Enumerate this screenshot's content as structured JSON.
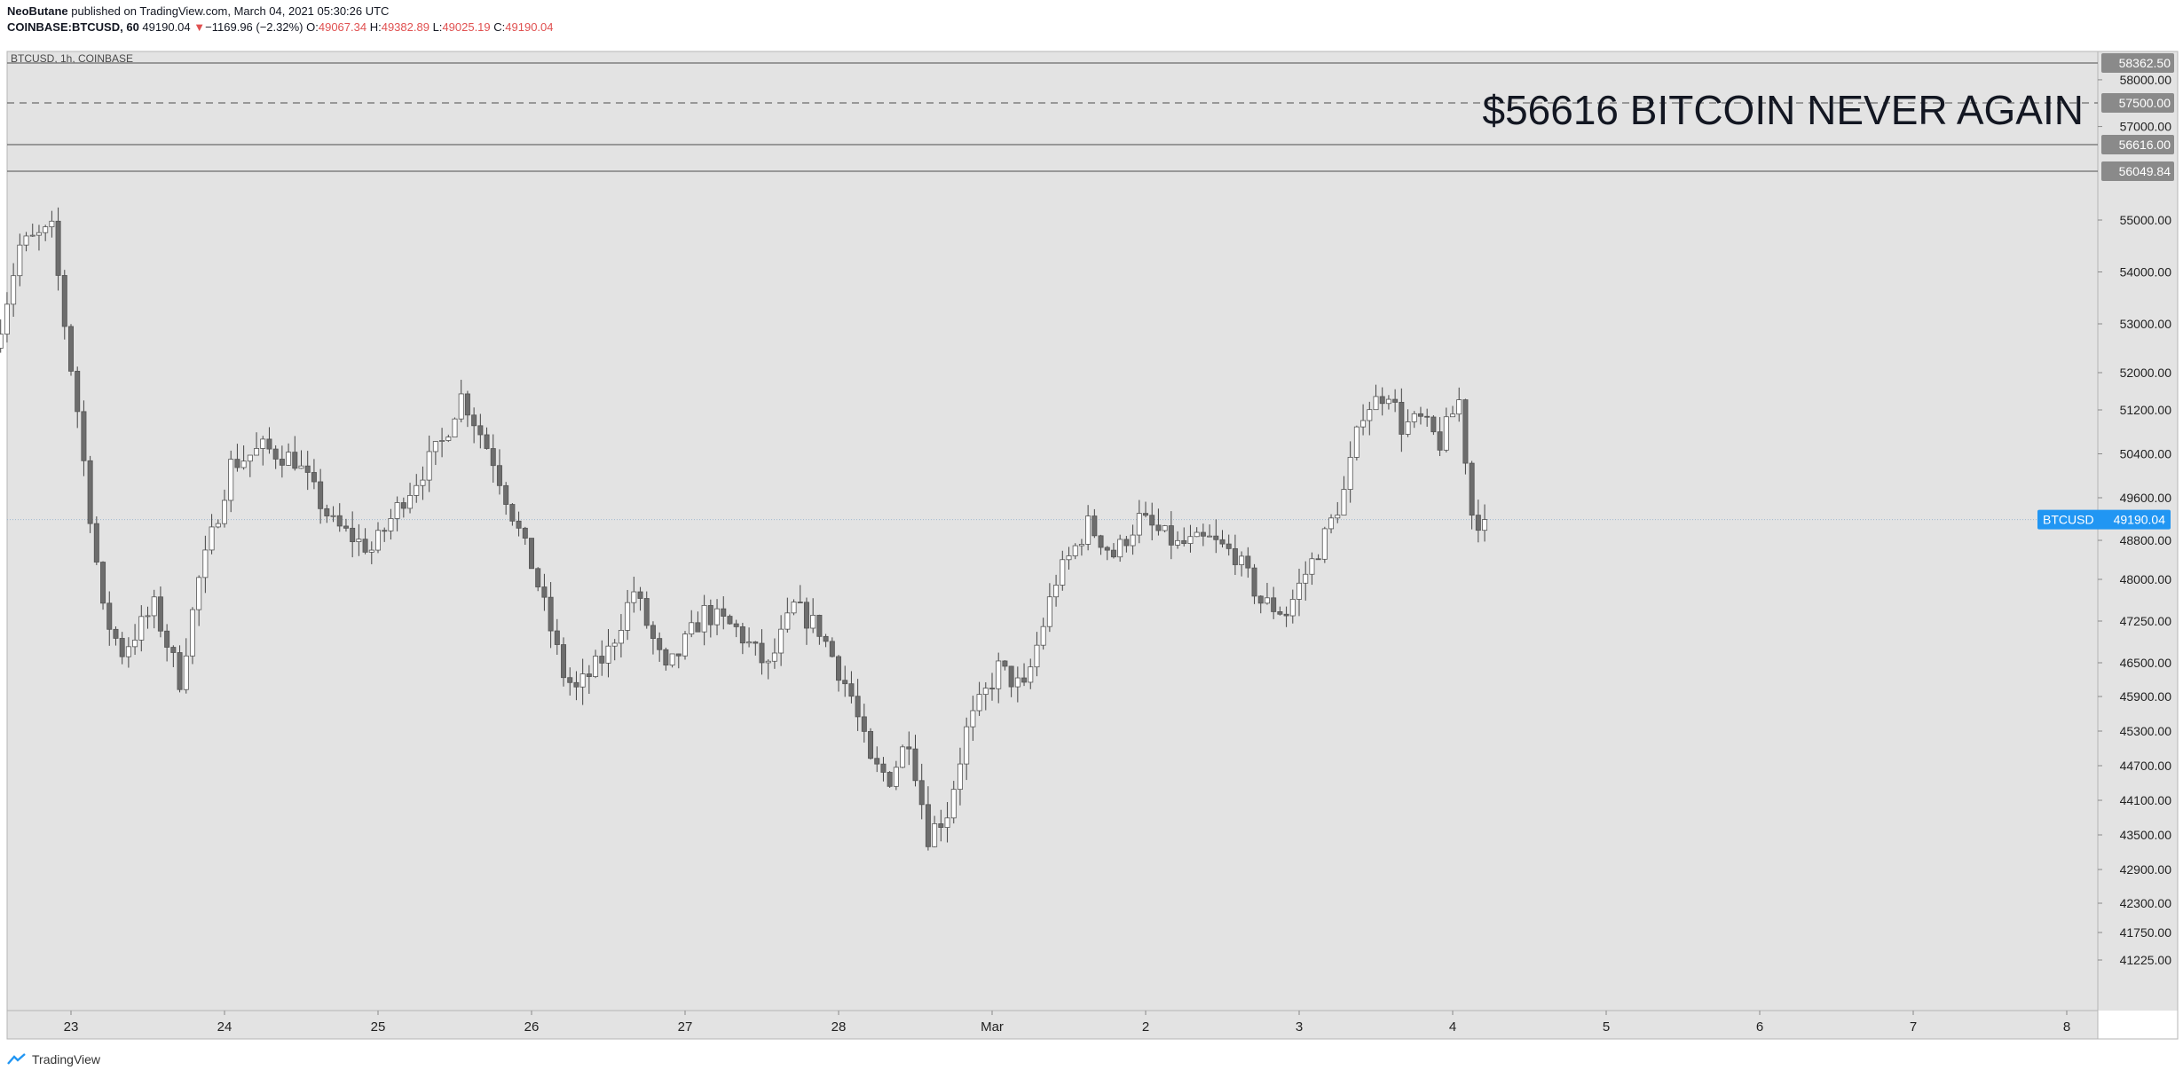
{
  "header": {
    "author": "NeoButane",
    "published": "published on TradingView.com, March 04, 2021 05:30:26 UTC",
    "symbol": "COINBASE:BTCUSD, 60",
    "last": "49190.04",
    "arrow": "▼",
    "change": "−1169.96 (−2.32%)",
    "o_label": "O:",
    "o_value": "49067.34",
    "h_label": "H:",
    "h_value": "49382.89",
    "l_label": "L:",
    "l_value": "49025.19",
    "c_label": "C:",
    "c_value": "49190.04"
  },
  "pane_label": "BTCUSD, 1h, COINBASE",
  "annotation": "$56616 BITCOIN NEVER AGAIN",
  "footer": {
    "brand": "TradingView"
  },
  "colors": {
    "pane_bg": "#e3e3e3",
    "candle_up_fill": "#ffffff",
    "candle_down_fill": "#6d6d6d",
    "wick": "#444444",
    "hline": "#6b6b6b",
    "price_tag": "#2196f3",
    "level_tag": "#8a8a8a"
  },
  "chart_data": {
    "type": "candlestick",
    "symbol": "BTCUSD",
    "interval": "1h",
    "last_price": 49190.04,
    "last_price_label": "49190.04",
    "price_tag_symbol": "BTCUSD",
    "y_ticks": [
      58000,
      57000,
      55000,
      54000,
      53000,
      52000,
      51200,
      50400,
      49600,
      48800,
      48000,
      47250,
      46500,
      45900,
      45300,
      44700,
      44100,
      43500,
      42900,
      42300,
      41750,
      41225
    ],
    "y_tick_labels": [
      "58000.00",
      "57000.00",
      "55000.00",
      "54000.00",
      "53000.00",
      "52000.00",
      "51200.00",
      "50400.00",
      "49600.00",
      "48800.00",
      "48000.00",
      "47250.00",
      "46500.00",
      "45900.00",
      "45300.00",
      "44700.00",
      "44100.00",
      "43500.00",
      "42900.00",
      "42300.00",
      "41750.00",
      "41225.00"
    ],
    "x_ticks": [
      "23",
      "24",
      "25",
      "26",
      "27",
      "28",
      "Mar",
      "2",
      "3",
      "4",
      "5",
      "6",
      "7",
      "8"
    ],
    "levels": [
      {
        "price": 58362.5,
        "label": "58362.50",
        "style": "solid"
      },
      {
        "price": 57500.0,
        "label": "57500.00",
        "style": "dashed"
      },
      {
        "price": 56616.0,
        "label": "56616.00",
        "style": "solid"
      },
      {
        "price": 56049.84,
        "label": "56049.84",
        "style": "solid"
      }
    ],
    "x_range": [
      "2021-02-22T13:00",
      "2021-03-08T12:00"
    ],
    "anchors": [
      [
        "2021-02-22T13:00",
        52500
      ],
      [
        "2021-02-22T17:00",
        54500
      ],
      [
        "2021-02-22T22:00",
        54800
      ],
      [
        "2021-02-23T02:00",
        51200
      ],
      [
        "2021-02-23T06:00",
        47400
      ],
      [
        "2021-02-23T09:00",
        46700
      ],
      [
        "2021-02-23T14:00",
        47500
      ],
      [
        "2021-02-23T18:00",
        46200
      ],
      [
        "2021-02-23T21:00",
        48000
      ],
      [
        "2021-02-24T02:00",
        50200
      ],
      [
        "2021-02-24T07:00",
        50500
      ],
      [
        "2021-02-24T12:00",
        50300
      ],
      [
        "2021-02-24T18:00",
        49100
      ],
      [
        "2021-02-25T00:00",
        48600
      ],
      [
        "2021-02-25T05:00",
        49600
      ],
      [
        "2021-02-25T11:00",
        50600
      ],
      [
        "2021-02-25T14:00",
        51500
      ],
      [
        "2021-02-25T19:00",
        50300
      ],
      [
        "2021-02-26T01:00",
        48300
      ],
      [
        "2021-02-26T06:00",
        46300
      ],
      [
        "2021-02-26T08:00",
        46000
      ],
      [
        "2021-02-26T13:00",
        46700
      ],
      [
        "2021-02-26T17:00",
        47800
      ],
      [
        "2021-02-26T22:00",
        46300
      ],
      [
        "2021-02-27T04:00",
        47400
      ],
      [
        "2021-02-27T09:00",
        47100
      ],
      [
        "2021-02-27T14:00",
        46400
      ],
      [
        "2021-02-27T18:00",
        47500
      ],
      [
        "2021-02-27T22:00",
        47100
      ],
      [
        "2021-02-28T03:00",
        45900
      ],
      [
        "2021-02-28T06:00",
        44700
      ],
      [
        "2021-02-28T09:00",
        44500
      ],
      [
        "2021-02-28T12:00",
        45200
      ],
      [
        "2021-02-28T15:00",
        43500
      ],
      [
        "2021-02-28T18:00",
        43900
      ],
      [
        "2021-02-28T21:00",
        45300
      ],
      [
        "2021-03-01T02:00",
        46400
      ],
      [
        "2021-03-01T06:00",
        46000
      ],
      [
        "2021-03-01T11:00",
        48000
      ],
      [
        "2021-03-01T16:00",
        49100
      ],
      [
        "2021-03-01T20:00",
        48500
      ],
      [
        "2021-03-02T00:00",
        49200
      ],
      [
        "2021-03-02T06:00",
        48700
      ],
      [
        "2021-03-02T11:00",
        48800
      ],
      [
        "2021-03-02T15:00",
        48500
      ],
      [
        "2021-03-02T19:00",
        47600
      ],
      [
        "2021-03-02T23:00",
        47400
      ],
      [
        "2021-03-03T04:00",
        48600
      ],
      [
        "2021-03-03T08:00",
        49700
      ],
      [
        "2021-03-03T11:00",
        51200
      ],
      [
        "2021-03-03T15:00",
        51600
      ],
      [
        "2021-03-03T17:00",
        50900
      ],
      [
        "2021-03-03T20:00",
        51000
      ],
      [
        "2021-03-03T23:00",
        50600
      ],
      [
        "2021-03-04T02:00",
        51400
      ],
      [
        "2021-03-04T04:00",
        49300
      ],
      [
        "2021-03-04T05:00",
        49190.04
      ]
    ]
  }
}
